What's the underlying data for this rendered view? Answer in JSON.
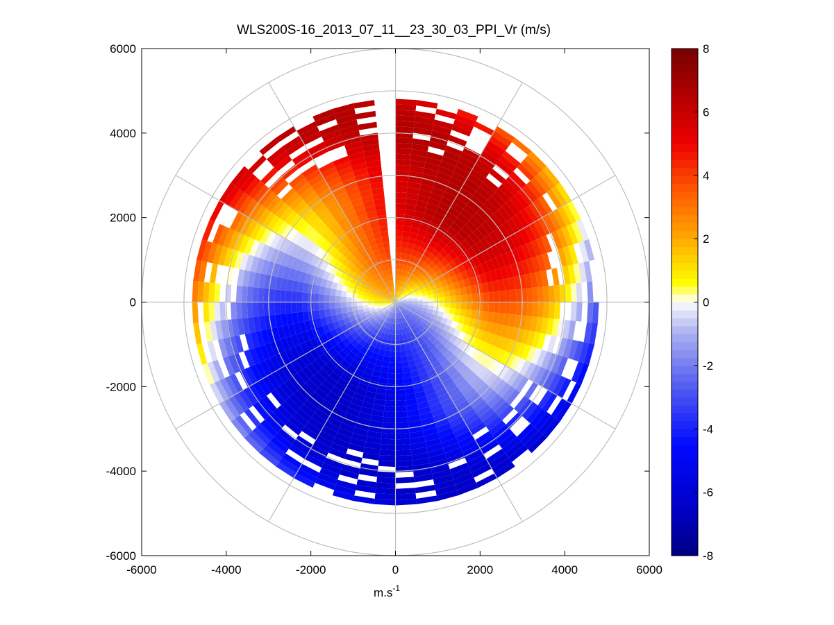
{
  "chart_data": {
    "type": "heatmap",
    "subtype": "polar_ppi",
    "title": "WLS200S-16_2013_07_11__23_30_03_PPI_Vr (m/s)",
    "xlabel": "m.s",
    "xlabel_superscript": "-1",
    "ylabel": "",
    "xlim": [
      -6000,
      6000
    ],
    "ylim": [
      -6000,
      6000
    ],
    "x_ticks": [
      -6000,
      -4000,
      -2000,
      0,
      2000,
      4000,
      6000
    ],
    "y_ticks": [
      -6000,
      -4000,
      -2000,
      0,
      2000,
      4000,
      6000
    ],
    "x_tick_labels": [
      "-6000",
      "-4000",
      "-2000",
      "0",
      "2000",
      "4000",
      "6000"
    ],
    "y_tick_labels": [
      "-6000",
      "-4000",
      "-2000",
      "0",
      "2000",
      "4000",
      "6000"
    ],
    "polar_rings_range": [
      1000,
      2000,
      3000,
      4000,
      5000,
      6000
    ],
    "polar_spokes_deg": [
      0,
      30,
      60,
      90,
      120,
      150,
      180,
      210,
      240,
      270,
      300,
      330
    ],
    "colorbar": {
      "range": [
        -8,
        8
      ],
      "ticks": [
        -8,
        -6,
        -4,
        -2,
        0,
        2,
        4,
        6,
        8
      ],
      "tick_labels": [
        "-8",
        "-6",
        "-4",
        "-2",
        "0",
        "2",
        "4",
        "6",
        "8"
      ]
    },
    "field_model": {
      "description_units": "radial velocity in m/s",
      "max_range": 4700,
      "max_abs_velocity": 6.5,
      "zero_line_direction_deg": 55
    },
    "grid": true,
    "colors": {
      "grid": "#bdbdbd",
      "axis": "#000000",
      "background": "#ffffff"
    }
  }
}
